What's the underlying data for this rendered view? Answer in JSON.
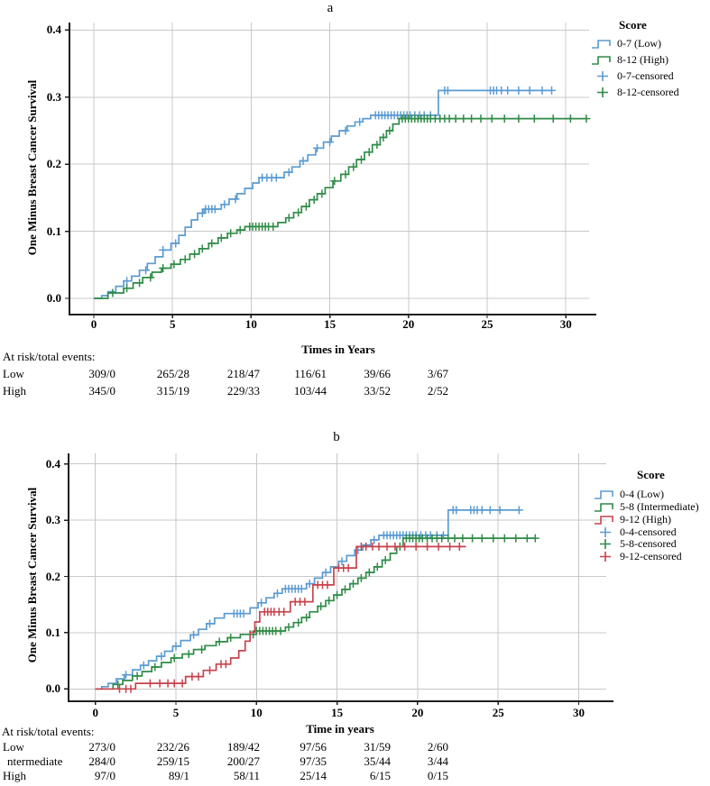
{
  "accent_colors": {
    "blue": "#5b9bd1",
    "green": "#2f8c47",
    "red": "#c7434d"
  },
  "chart_data": [
    {
      "panel_label": "a",
      "type": "line",
      "subtype": "kaplan-meier-step",
      "title": "a",
      "xlabel": "Times in Years",
      "ylabel": "One Minus Breast Cancer Survival",
      "xlim": [
        0,
        30
      ],
      "ylim": [
        0.0,
        0.4
      ],
      "x_ticks": [
        0,
        5,
        10,
        15,
        20,
        25,
        30
      ],
      "y_ticks": [
        "0.0",
        "0.1",
        "0.2",
        "0.3",
        "0.4"
      ],
      "grid": true,
      "legend_title": "Score",
      "legend_position": "right",
      "series": [
        {
          "name": "0-7 (Low)",
          "color": "#5b9bd1",
          "end_time": 29.1,
          "steps": [
            [
              0,
              0
            ],
            [
              0.5,
              0.004
            ],
            [
              0.9,
              0.01
            ],
            [
              1.4,
              0.018
            ],
            [
              1.9,
              0.026
            ],
            [
              2.4,
              0.033
            ],
            [
              2.9,
              0.042
            ],
            [
              3.4,
              0.052
            ],
            [
              3.9,
              0.062
            ],
            [
              4.4,
              0.072
            ],
            [
              4.9,
              0.082
            ],
            [
              5.4,
              0.094
            ],
            [
              5.8,
              0.106
            ],
            [
              6.2,
              0.117
            ],
            [
              6.6,
              0.127
            ],
            [
              7.0,
              0.133
            ],
            [
              8.1,
              0.14
            ],
            [
              8.6,
              0.148
            ],
            [
              9.1,
              0.156
            ],
            [
              9.6,
              0.164
            ],
            [
              10.1,
              0.172
            ],
            [
              10.5,
              0.18
            ],
            [
              12.1,
              0.188
            ],
            [
              12.6,
              0.196
            ],
            [
              13.1,
              0.205
            ],
            [
              13.6,
              0.214
            ],
            [
              14.1,
              0.224
            ],
            [
              14.6,
              0.233
            ],
            [
              15.1,
              0.242
            ],
            [
              15.6,
              0.25
            ],
            [
              16.1,
              0.257
            ],
            [
              16.6,
              0.263
            ],
            [
              17.1,
              0.268
            ],
            [
              17.6,
              0.273
            ],
            [
              21.9,
              0.31
            ]
          ],
          "censor_times": [
            2.1,
            3.3,
            4.4,
            5.2,
            6.9,
            7.1,
            7.3,
            7.5,
            7.7,
            8.3,
            9.0,
            10.7,
            11.0,
            11.3,
            11.6,
            12.4,
            13.3,
            14.2,
            15.0,
            16.0,
            16.9,
            17.9,
            18.1,
            18.3,
            18.5,
            18.7,
            18.9,
            19.1,
            19.3,
            19.5,
            19.7,
            19.9,
            20.1,
            20.4,
            20.7,
            21.0,
            21.4,
            22.3,
            22.5,
            25.2,
            25.4,
            25.6,
            25.9,
            26.3,
            27.0,
            27.7,
            28.5,
            29.1
          ]
        },
        {
          "name": "8-12 (High)",
          "color": "#2f8c47",
          "end_time": 31.3,
          "steps": [
            [
              0,
              0
            ],
            [
              0.9,
              0.008
            ],
            [
              1.9,
              0.015
            ],
            [
              2.5,
              0.023
            ],
            [
              3.1,
              0.031
            ],
            [
              3.7,
              0.039
            ],
            [
              4.3,
              0.045
            ],
            [
              4.9,
              0.051
            ],
            [
              5.5,
              0.058
            ],
            [
              6.1,
              0.066
            ],
            [
              6.7,
              0.074
            ],
            [
              7.3,
              0.082
            ],
            [
              7.9,
              0.09
            ],
            [
              8.5,
              0.097
            ],
            [
              9.1,
              0.102
            ],
            [
              9.6,
              0.107
            ],
            [
              11.7,
              0.113
            ],
            [
              12.2,
              0.12
            ],
            [
              12.7,
              0.128
            ],
            [
              13.2,
              0.137
            ],
            [
              13.7,
              0.147
            ],
            [
              14.2,
              0.156
            ],
            [
              14.7,
              0.165
            ],
            [
              15.2,
              0.175
            ],
            [
              15.7,
              0.185
            ],
            [
              16.2,
              0.196
            ],
            [
              16.7,
              0.207
            ],
            [
              17.2,
              0.218
            ],
            [
              17.7,
              0.229
            ],
            [
              18.2,
              0.24
            ],
            [
              18.6,
              0.25
            ],
            [
              19.0,
              0.26
            ],
            [
              19.4,
              0.268
            ]
          ],
          "censor_times": [
            1.2,
            2.1,
            2.9,
            3.6,
            4.4,
            5.1,
            5.8,
            6.4,
            6.9,
            7.5,
            8.1,
            8.7,
            9.3,
            9.9,
            10.1,
            10.3,
            10.5,
            10.7,
            10.9,
            11.1,
            11.4,
            12.4,
            13.0,
            13.5,
            14.0,
            14.5,
            15.3,
            16.0,
            16.5,
            17.0,
            17.5,
            18.0,
            18.4,
            18.8,
            19.6,
            19.8,
            20.0,
            20.2,
            20.4,
            20.6,
            20.8,
            21.0,
            21.2,
            21.4,
            21.7,
            22.0,
            22.3,
            22.6,
            23.0,
            23.5,
            24.0,
            24.6,
            25.3,
            26.1,
            27.0,
            28.0,
            29.2,
            30.3,
            31.3
          ]
        }
      ],
      "legend_items": [
        {
          "label": "0-7 (Low)",
          "glyph": "step",
          "color": "#5b9bd1"
        },
        {
          "label": "8-12 (High)",
          "glyph": "step",
          "color": "#2f8c47"
        },
        {
          "label": "0-7-censored",
          "glyph": "plus",
          "color": "#5b9bd1"
        },
        {
          "label": "8-12-censored",
          "glyph": "plus",
          "color": "#2f8c47"
        }
      ],
      "at_risk": {
        "header": "At risk/total events:",
        "rows": [
          {
            "label": "Low",
            "values": [
              "309/0",
              "265/28",
              "218/47",
              "116/61",
              "39/66",
              "3/67"
            ]
          },
          {
            "label": "High",
            "values": [
              "345/0",
              "315/19",
              "229/33",
              "103/44",
              "33/52",
              "2/52"
            ]
          }
        ]
      }
    },
    {
      "panel_label": "b",
      "type": "line",
      "subtype": "kaplan-meier-step",
      "title": "b",
      "xlabel": "Time in years",
      "ylabel": "One Minus Breast Cancer Survival",
      "xlim": [
        0,
        30
      ],
      "ylim": [
        0.0,
        0.4
      ],
      "x_ticks": [
        0,
        5,
        10,
        15,
        20,
        25,
        30
      ],
      "y_ticks": [
        "0.0",
        "0.1",
        "0.2",
        "0.3",
        "0.4"
      ],
      "grid": true,
      "legend_title": "Score",
      "legend_position": "right",
      "series": [
        {
          "name": "0-4 (Low)",
          "color": "#5b9bd1",
          "end_time": 26.3,
          "steps": [
            [
              0,
              0
            ],
            [
              0.4,
              0.004
            ],
            [
              0.8,
              0.01
            ],
            [
              1.3,
              0.018
            ],
            [
              1.8,
              0.025
            ],
            [
              2.3,
              0.034
            ],
            [
              2.8,
              0.042
            ],
            [
              3.3,
              0.05
            ],
            [
              3.8,
              0.058
            ],
            [
              4.3,
              0.067
            ],
            [
              4.8,
              0.076
            ],
            [
              5.3,
              0.086
            ],
            [
              5.9,
              0.096
            ],
            [
              6.4,
              0.106
            ],
            [
              6.9,
              0.116
            ],
            [
              7.4,
              0.126
            ],
            [
              8.0,
              0.134
            ],
            [
              9.6,
              0.144
            ],
            [
              10.1,
              0.153
            ],
            [
              10.6,
              0.162
            ],
            [
              11.1,
              0.17
            ],
            [
              11.6,
              0.178
            ],
            [
              13.1,
              0.187
            ],
            [
              13.6,
              0.197
            ],
            [
              14.1,
              0.207
            ],
            [
              14.6,
              0.217
            ],
            [
              15.1,
              0.227
            ],
            [
              15.6,
              0.237
            ],
            [
              16.1,
              0.247
            ],
            [
              16.6,
              0.256
            ],
            [
              17.1,
              0.265
            ],
            [
              17.6,
              0.273
            ],
            [
              21.9,
              0.318
            ]
          ],
          "censor_times": [
            1.9,
            3.0,
            4.1,
            5.0,
            6.1,
            7.1,
            8.6,
            8.8,
            9.0,
            9.2,
            10.3,
            11.3,
            11.8,
            12.0,
            12.2,
            12.4,
            12.6,
            12.8,
            13.3,
            14.3,
            15.3,
            16.3,
            17.3,
            17.9,
            18.1,
            18.3,
            18.5,
            18.7,
            18.9,
            19.1,
            19.3,
            19.5,
            19.7,
            19.9,
            20.2,
            20.5,
            20.8,
            21.2,
            21.6,
            22.2,
            22.4,
            23.3,
            23.5,
            23.7,
            24.0,
            24.5,
            25.1,
            26.3
          ]
        },
        {
          "name": "5-8 (Intermediate)",
          "color": "#2f8c47",
          "end_time": 27.3,
          "steps": [
            [
              0,
              0
            ],
            [
              1.1,
              0.008
            ],
            [
              1.7,
              0.015
            ],
            [
              2.3,
              0.023
            ],
            [
              2.9,
              0.031
            ],
            [
              3.5,
              0.039
            ],
            [
              4.1,
              0.047
            ],
            [
              4.7,
              0.055
            ],
            [
              5.4,
              0.062
            ],
            [
              6.1,
              0.07
            ],
            [
              6.8,
              0.077
            ],
            [
              7.5,
              0.084
            ],
            [
              8.2,
              0.091
            ],
            [
              9.0,
              0.097
            ],
            [
              10.0,
              0.103
            ],
            [
              11.8,
              0.11
            ],
            [
              12.3,
              0.118
            ],
            [
              12.8,
              0.127
            ],
            [
              13.3,
              0.137
            ],
            [
              13.8,
              0.147
            ],
            [
              14.3,
              0.157
            ],
            [
              14.8,
              0.167
            ],
            [
              15.3,
              0.177
            ],
            [
              15.8,
              0.187
            ],
            [
              16.3,
              0.197
            ],
            [
              16.8,
              0.207
            ],
            [
              17.3,
              0.217
            ],
            [
              17.8,
              0.229
            ],
            [
              18.3,
              0.241
            ],
            [
              18.7,
              0.253
            ],
            [
              19.1,
              0.268
            ]
          ],
          "censor_times": [
            1.4,
            2.6,
            3.7,
            4.9,
            5.8,
            6.6,
            7.7,
            8.4,
            9.6,
            9.8,
            10.0,
            10.2,
            10.4,
            10.6,
            10.8,
            11.0,
            11.2,
            11.5,
            12.0,
            12.6,
            13.1,
            14.0,
            14.5,
            15.0,
            15.5,
            16.0,
            16.5,
            17.0,
            17.5,
            18.0,
            18.9,
            19.3,
            19.5,
            19.7,
            19.9,
            20.1,
            20.3,
            20.6,
            20.9,
            21.2,
            21.5,
            21.9,
            22.3,
            22.8,
            23.4,
            24.0,
            24.7,
            25.4,
            26.1,
            26.8,
            27.3
          ]
        },
        {
          "name": "9-12 (High)",
          "color": "#c7434d",
          "end_time": 23.0,
          "steps": [
            [
              0,
              0
            ],
            [
              2.5,
              0.01
            ],
            [
              5.6,
              0.022
            ],
            [
              6.7,
              0.033
            ],
            [
              7.5,
              0.044
            ],
            [
              8.4,
              0.055
            ],
            [
              8.9,
              0.068
            ],
            [
              9.3,
              0.085
            ],
            [
              9.6,
              0.101
            ],
            [
              9.9,
              0.119
            ],
            [
              10.2,
              0.137
            ],
            [
              12.1,
              0.155
            ],
            [
              13.5,
              0.185
            ],
            [
              14.8,
              0.215
            ],
            [
              16.2,
              0.253
            ]
          ],
          "censor_times": [
            1.5,
            1.9,
            2.2,
            3.4,
            4.0,
            4.5,
            4.9,
            5.4,
            6.0,
            6.4,
            7.1,
            7.8,
            8.1,
            10.5,
            10.7,
            10.9,
            11.1,
            11.4,
            11.7,
            12.4,
            12.7,
            13.0,
            13.8,
            14.1,
            14.4,
            15.1,
            15.4,
            15.7,
            16.5,
            16.8,
            17.2,
            17.6,
            18.1,
            18.6,
            19.2,
            19.9,
            20.6,
            21.3,
            22.0,
            22.6
          ]
        }
      ],
      "legend_items": [
        {
          "label": "0-4 (Low)",
          "glyph": "step",
          "color": "#5b9bd1"
        },
        {
          "label": "5-8 (Intermediate)",
          "glyph": "step",
          "color": "#2f8c47"
        },
        {
          "label": "9-12 (High)",
          "glyph": "step",
          "color": "#c7434d"
        },
        {
          "label": "0-4-censored",
          "glyph": "plus",
          "color": "#5b9bd1"
        },
        {
          "label": "5-8-censored",
          "glyph": "plus",
          "color": "#2f8c47"
        },
        {
          "label": "9-12-censored",
          "glyph": "plus",
          "color": "#c7434d"
        }
      ],
      "at_risk": {
        "header": "At risk/total events:",
        "rows": [
          {
            "label": "Low",
            "values": [
              "273/0",
              "232/26",
              "189/42",
              "97/56",
              "31/59",
              "2/60"
            ]
          },
          {
            "label": "ntermediate",
            "values": [
              "284/0",
              "259/15",
              "200/27",
              "97/35",
              "35/44",
              "3/44"
            ]
          },
          {
            "label": "High",
            "values": [
              "97/0",
              "89/1",
              "58/11",
              "25/14",
              "6/15",
              "0/15"
            ]
          }
        ]
      }
    }
  ]
}
